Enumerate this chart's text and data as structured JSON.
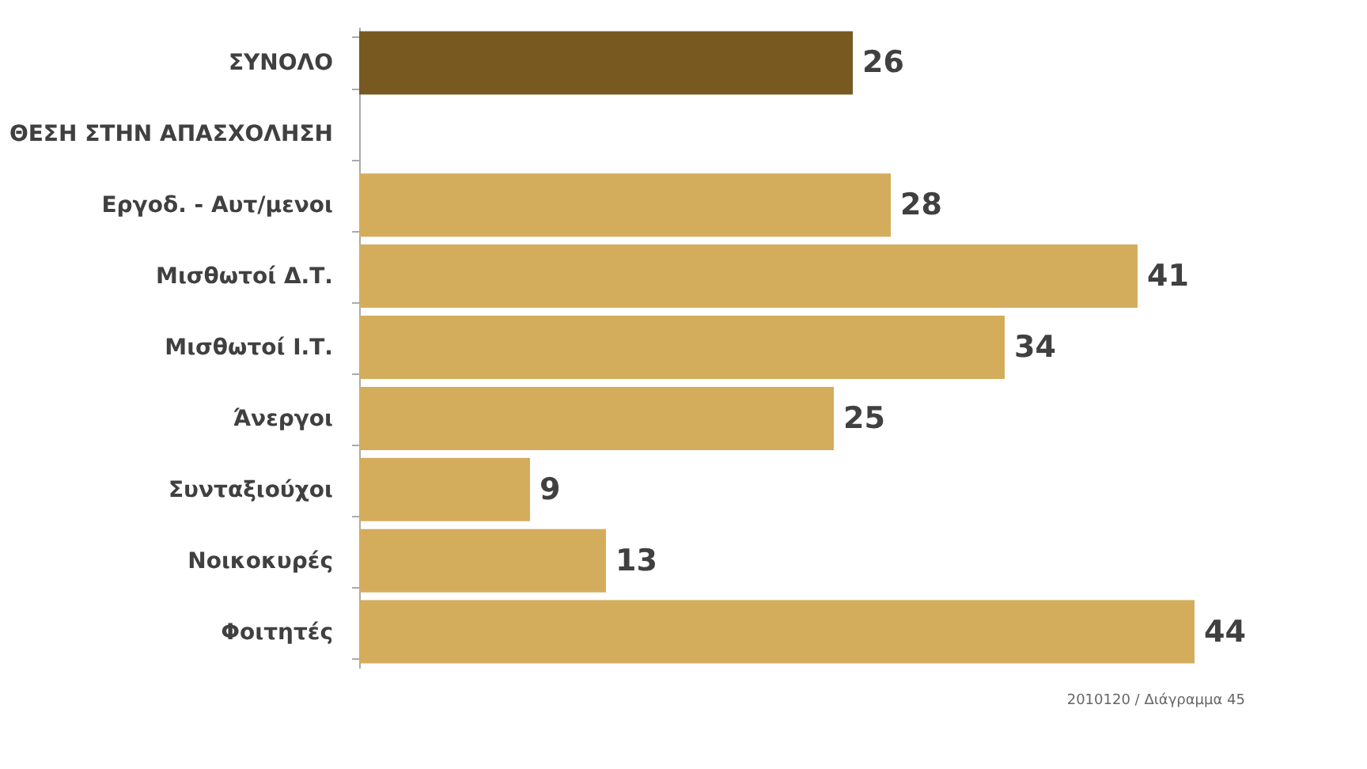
{
  "chart_data": {
    "type": "bar",
    "orientation": "horizontal",
    "data_labels": true,
    "grid": false,
    "tick_labels": "y",
    "categories": [
      "ΣΥΝΟΛΟ",
      "ΘΕΣΗ ΣΤΗΝ ΑΠΑΣΧΟΛΗΣΗ",
      "Εργοδ. - Αυτ/μενοι",
      "Μισθωτοί Δ.Τ.",
      "Μισθωτοί Ι.Τ.",
      "Άνεργοι",
      "Συνταξιούχοι",
      "Νοικοκυρές",
      "Φοιτητές"
    ],
    "values": [
      26,
      null,
      28,
      41,
      34,
      25,
      9,
      13,
      44
    ],
    "colors": [
      "#785a20",
      "#d4ad5c",
      "#d4ad5c",
      "#d4ad5c",
      "#d4ad5c",
      "#d4ad5c",
      "#d4ad5c",
      "#d4ad5c",
      "#d4ad5c"
    ],
    "annotations": [
      "2010120 / Διάγραμμα 45"
    ]
  }
}
